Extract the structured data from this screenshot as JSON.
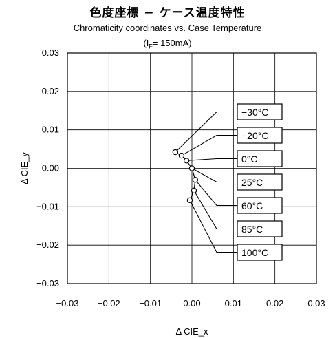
{
  "chart_data": {
    "type": "scatter",
    "title": "色度座標 − ケース温度特性",
    "subtitle": "Chromaticity coordinates vs. Case Temperature",
    "condition": "(I",
    "condition_sub": "F",
    "condition_rest": "= 150mA)",
    "xlabel": "Δ CIE_x",
    "ylabel": "Δ CIE_y",
    "xlim": [
      -0.03,
      0.03
    ],
    "ylim": [
      -0.03,
      0.03
    ],
    "grid": true,
    "x_ticks": [
      "−0.03",
      "−0.02",
      "−0.01",
      "0.00",
      "0.01",
      "0.02",
      "0.03"
    ],
    "y_ticks": [
      "0.03",
      "0.02",
      "0.01",
      "0.00",
      "−0.01",
      "−0.02",
      "−0.03"
    ],
    "series": [
      {
        "points": [
          {
            "label": "−30°C",
            "x": -0.004,
            "y": 0.0042
          },
          {
            "label": "−20°C",
            "x": -0.0025,
            "y": 0.0033
          },
          {
            "label": "0°C",
            "x": -0.0013,
            "y": 0.002
          },
          {
            "label": "25°C",
            "x": 0.0,
            "y": 0.0
          },
          {
            "label": "60°C",
            "x": 0.0008,
            "y": -0.003
          },
          {
            "label": "85°C",
            "x": 0.0005,
            "y": -0.0058
          },
          {
            "label": "100°C",
            "x": -0.0005,
            "y": -0.0083
          }
        ]
      }
    ]
  }
}
